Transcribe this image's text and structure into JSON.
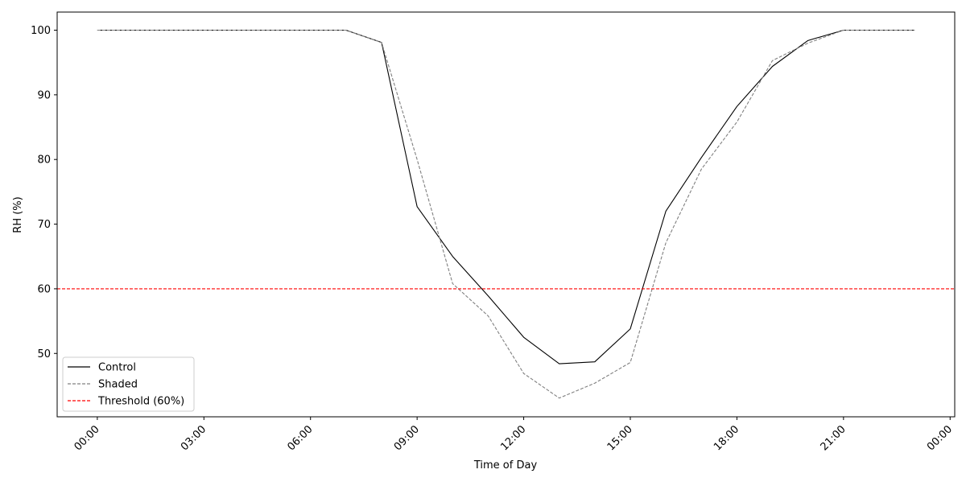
{
  "chart_data": {
    "type": "line",
    "title": "",
    "xlabel": "Time of Day",
    "ylabel": "RH (%)",
    "xlim": [
      -1.13,
      24.13
    ],
    "ylim": [
      40.2,
      102.8
    ],
    "x_ticks": [
      0,
      3,
      6,
      9,
      12,
      15,
      18,
      21,
      24
    ],
    "x_tick_labels": [
      "00:00",
      "03:00",
      "06:00",
      "09:00",
      "12:00",
      "15:00",
      "18:00",
      "21:00",
      "00:00"
    ],
    "y_ticks": [
      50,
      60,
      70,
      80,
      90,
      100
    ],
    "y_tick_labels": [
      "50",
      "60",
      "70",
      "80",
      "90",
      "100"
    ],
    "x": [
      0,
      1,
      2,
      3,
      4,
      5,
      6,
      7,
      8,
      9,
      10,
      11,
      12,
      13,
      14,
      15,
      16,
      17,
      18,
      19,
      20,
      21,
      22,
      23
    ],
    "series": [
      {
        "name": "Control",
        "color": "#000000",
        "style": "solid",
        "values": [
          100,
          100,
          100,
          100,
          100,
          100,
          100,
          100,
          98.1,
          72.7,
          65.0,
          58.9,
          52.5,
          48.4,
          48.7,
          53.8,
          72.0,
          80.3,
          88.2,
          94.4,
          98.4,
          100,
          100,
          100
        ]
      },
      {
        "name": "Shaded",
        "color": "#808080",
        "style": "dashed",
        "values": [
          100,
          100,
          100,
          100,
          100,
          100,
          100,
          100,
          98.1,
          80.0,
          60.8,
          55.8,
          46.9,
          43.1,
          45.4,
          48.6,
          67.1,
          78.5,
          85.8,
          95.3,
          98.0,
          100,
          100,
          100
        ]
      }
    ],
    "reference_lines": [
      {
        "name": "Threshold (60%)",
        "value": 60,
        "color": "#ff0000",
        "style": "dashed"
      }
    ],
    "legend": {
      "position": "lower-left",
      "entries": [
        "Control",
        "Shaded",
        "Threshold (60%)"
      ]
    },
    "grid": false
  }
}
